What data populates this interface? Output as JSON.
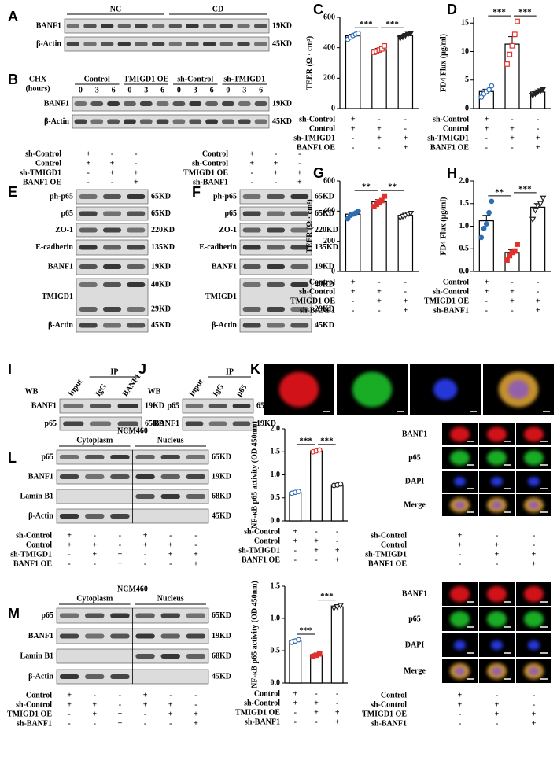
{
  "blots": [
    {
      "label": "A",
      "groups": [
        "NC",
        "CD"
      ],
      "rows": [
        {
          "name": "BANF1",
          "sizes": [
            "19KD"
          ]
        },
        {
          "name": "β-Actin",
          "sizes": [
            "45KD"
          ]
        }
      ]
    },
    {
      "label": "B",
      "axis_label": [
        "CHX",
        "(hours)"
      ],
      "groups": [
        "Control",
        "TMIGD1 OE",
        "sh-Control",
        "sh-TMIGD1"
      ],
      "times": [
        "0",
        "3",
        "6"
      ],
      "rows": [
        {
          "name": "BANF1",
          "sizes": [
            "19KD"
          ]
        },
        {
          "name": "β-Actin",
          "sizes": [
            "45KD"
          ]
        }
      ]
    },
    {
      "label": "E",
      "conditions": [
        {
          "name": "sh-Control",
          "signs": [
            "+",
            "-",
            "-"
          ]
        },
        {
          "name": "Control",
          "signs": [
            "+",
            "+",
            "-"
          ]
        },
        {
          "name": "sh-TMIGD1",
          "signs": [
            "-",
            "+",
            "+"
          ]
        },
        {
          "name": "BANF1 OE",
          "signs": [
            "-",
            "-",
            "+"
          ]
        }
      ],
      "rows": [
        {
          "name": "ph-p65",
          "sizes": [
            "65KD"
          ]
        },
        {
          "name": "p65",
          "sizes": [
            "65KD"
          ]
        },
        {
          "name": "ZO-1",
          "sizes": [
            "220KD"
          ]
        },
        {
          "name": "E-cadherin",
          "sizes": [
            "135KD"
          ]
        },
        {
          "name": "BANF1",
          "sizes": [
            "19KD"
          ]
        },
        {
          "name": "TMIGD1",
          "sizes": [
            "40KD",
            "29KD"
          ]
        },
        {
          "name": "β-Actin",
          "sizes": [
            "45KD"
          ]
        }
      ]
    },
    {
      "label": "F",
      "conditions": [
        {
          "name": "Control",
          "signs": [
            "+",
            "-",
            "-"
          ]
        },
        {
          "name": "sh-Control",
          "signs": [
            "+",
            "+",
            "-"
          ]
        },
        {
          "name": "TMIGD1 OE",
          "signs": [
            "-",
            "+",
            "+"
          ]
        },
        {
          "name": "sh-BANF1",
          "signs": [
            "-",
            "-",
            "+"
          ]
        }
      ],
      "rows": [
        {
          "name": "ph-p65",
          "sizes": [
            "65KD"
          ]
        },
        {
          "name": "p65",
          "sizes": [
            "65KD"
          ]
        },
        {
          "name": "ZO-1",
          "sizes": [
            "220KD"
          ]
        },
        {
          "name": "E-cadherin",
          "sizes": [
            "135KD"
          ]
        },
        {
          "name": "BANF1",
          "sizes": [
            "19KD"
          ]
        },
        {
          "name": "TMIGD1",
          "sizes": [
            "40KD",
            "29KD"
          ]
        },
        {
          "name": "β-Actin",
          "sizes": [
            "45KD"
          ]
        }
      ]
    },
    {
      "label": "I",
      "method": "WB",
      "ip": "IP",
      "lanes": [
        "Input",
        "IgG",
        "BANF1"
      ],
      "rows": [
        {
          "name": "BANF1",
          "sizes": [
            "19KD"
          ]
        },
        {
          "name": "p65",
          "sizes": [
            "65KD"
          ]
        }
      ]
    },
    {
      "label": "J",
      "method": "WB",
      "ip": "IP",
      "lanes": [
        "Input",
        "IgG",
        "p65"
      ],
      "rows": [
        {
          "name": "p65",
          "sizes": [
            "65KD"
          ]
        },
        {
          "name": "BANF1",
          "sizes": [
            "19KD"
          ]
        }
      ]
    },
    {
      "label": "L",
      "cell_line": "NCM460",
      "groups": [
        "Cytoplasm",
        "Nucleus"
      ],
      "rows": [
        {
          "name": "p65",
          "sizes": [
            "65KD"
          ]
        },
        {
          "name": "BANF1",
          "sizes": [
            "19KD"
          ]
        },
        {
          "name": "Lamin B1",
          "sizes": [
            "68KD"
          ]
        },
        {
          "name": "β-Actin",
          "sizes": [
            "45KD"
          ]
        }
      ],
      "conditions": [
        {
          "name": "sh-Control",
          "signs": [
            "+",
            "-",
            "-",
            "+",
            "-",
            "-"
          ]
        },
        {
          "name": "Control",
          "signs": [
            "+",
            "+",
            "-",
            "+",
            "+",
            "-"
          ]
        },
        {
          "name": "sh-TMIGD1",
          "signs": [
            "-",
            "+",
            "+",
            "-",
            "+",
            "+"
          ]
        },
        {
          "name": "BANF1 OE",
          "signs": [
            "-",
            "-",
            "+",
            "-",
            "-",
            "+"
          ]
        }
      ]
    },
    {
      "label": "M",
      "cell_line": "NCM460",
      "groups": [
        "Cytoplasm",
        "Nucleus"
      ],
      "rows": [
        {
          "name": "p65",
          "sizes": [
            "65KD"
          ]
        },
        {
          "name": "BANF1",
          "sizes": [
            "19KD"
          ]
        },
        {
          "name": "Lamin B1",
          "sizes": [
            "68KD"
          ]
        },
        {
          "name": "β-Actin",
          "sizes": [
            "45KD"
          ]
        }
      ],
      "conditions": [
        {
          "name": "Control",
          "signs": [
            "+",
            "-",
            "-",
            "+",
            "-",
            "-"
          ]
        },
        {
          "name": "sh-Control",
          "signs": [
            "+",
            "+",
            "-",
            "+",
            "+",
            "-"
          ]
        },
        {
          "name": "TMIGD1 OE",
          "signs": [
            "-",
            "+",
            "+",
            "-",
            "+",
            "+"
          ]
        },
        {
          "name": "sh-BANF1",
          "signs": [
            "-",
            "-",
            "+",
            "-",
            "-",
            "+"
          ]
        }
      ]
    }
  ],
  "chart_data": [
    {
      "type": "bar",
      "label": "C",
      "ylabel": "TEER (Ω · cm²)",
      "ylim": [
        0,
        600
      ],
      "yticks": [
        0,
        200,
        400,
        600
      ],
      "bar_color": "#ffffff",
      "values": [
        478,
        388,
        480
      ],
      "errors": [
        10,
        8,
        8
      ],
      "points": [
        [
          455,
          470,
          480,
          488,
          495
        ],
        [
          370,
          378,
          385,
          392,
          412
        ],
        [
          462,
          470,
          480,
          488,
          495
        ]
      ],
      "point_colors": [
        "#2e6db4",
        "#e0312f",
        "#222222"
      ],
      "markers": [
        "circle",
        "square",
        "triangle-down"
      ],
      "marker_fill": [
        false,
        false,
        true
      ],
      "comparisons": [
        {
          "groups": [
            0,
            1
          ],
          "label": "***"
        },
        {
          "groups": [
            1,
            2
          ],
          "label": "***"
        }
      ],
      "conditions": [
        {
          "name": "sh-Control",
          "signs": [
            "+",
            "-",
            "-"
          ]
        },
        {
          "name": "Control",
          "signs": [
            "+",
            "+",
            "-"
          ]
        },
        {
          "name": "sh-TMIGD1",
          "signs": [
            "-",
            "+",
            "+"
          ]
        },
        {
          "name": "BANF1 OE",
          "signs": [
            "-",
            "-",
            "+"
          ]
        }
      ]
    },
    {
      "type": "bar",
      "label": "D",
      "ylabel": "FD4 Flux (μg/ml)",
      "ylim": [
        0,
        16
      ],
      "yticks": [
        0,
        5,
        10,
        15
      ],
      "bar_color": "#ffffff",
      "values": [
        3.0,
        11.3,
        2.9
      ],
      "errors": [
        0.4,
        1.3,
        0.3
      ],
      "points": [
        [
          2.0,
          2.6,
          3.0,
          3.3,
          4.0
        ],
        [
          7.8,
          9.5,
          11.0,
          13.0,
          15.3
        ],
        [
          2.3,
          2.6,
          2.9,
          3.1,
          3.4
        ]
      ],
      "point_colors": [
        "#2e6db4",
        "#e0312f",
        "#222222"
      ],
      "markers": [
        "circle",
        "square",
        "triangle-down"
      ],
      "marker_fill": [
        false,
        false,
        true
      ],
      "comparisons": [
        {
          "groups": [
            0,
            1
          ],
          "label": "***"
        },
        {
          "groups": [
            1,
            2
          ],
          "label": "***"
        }
      ],
      "conditions": [
        {
          "name": "sh-Control",
          "signs": [
            "+",
            "-",
            "-"
          ]
        },
        {
          "name": "Control",
          "signs": [
            "+",
            "+",
            "-"
          ]
        },
        {
          "name": "sh-TMIGD1",
          "signs": [
            "-",
            "+",
            "+"
          ]
        },
        {
          "name": "BANF1 OE",
          "signs": [
            "-",
            "-",
            "+"
          ]
        }
      ]
    },
    {
      "type": "bar",
      "label": "G",
      "ylabel": "TEER (Ω · cm²)",
      "ylim": [
        0,
        600
      ],
      "yticks": [
        0,
        200,
        400,
        600
      ],
      "bar_color": "#ffffff",
      "values": [
        380,
        462,
        372
      ],
      "errors": [
        12,
        14,
        8
      ],
      "points": [
        [
          350,
          372,
          380,
          388,
          400
        ],
        [
          430,
          445,
          460,
          470,
          500
        ],
        [
          355,
          365,
          372,
          378,
          385
        ]
      ],
      "point_colors": [
        "#2e6db4",
        "#e0312f",
        "#222222"
      ],
      "markers": [
        "circle",
        "square",
        "triangle-down"
      ],
      "marker_fill": [
        true,
        true,
        false
      ],
      "comparisons": [
        {
          "groups": [
            0,
            1
          ],
          "label": "**"
        },
        {
          "groups": [
            1,
            2
          ],
          "label": "**"
        }
      ],
      "conditions": [
        {
          "name": "Control",
          "signs": [
            "+",
            "-",
            "-"
          ]
        },
        {
          "name": "sh-Control",
          "signs": [
            "+",
            "+",
            "-"
          ]
        },
        {
          "name": "TMIGD1 OE",
          "signs": [
            "-",
            "+",
            "+"
          ]
        },
        {
          "name": "sh-BANF1",
          "signs": [
            "-",
            "-",
            "+"
          ]
        }
      ]
    },
    {
      "type": "bar",
      "label": "H",
      "ylabel": "FD4 Flux (μg/ml)",
      "ylim": [
        0,
        2
      ],
      "yticks": [
        {
          "value": 0,
          "label": "0.0"
        },
        {
          "value": 0.5,
          "label": "0.5"
        },
        {
          "value": 1,
          "label": "1.0"
        },
        {
          "value": 1.5,
          "label": "1.5"
        },
        {
          "value": 2,
          "label": "2.0"
        }
      ],
      "bar_color": "#ffffff",
      "values": [
        1.12,
        0.42,
        1.42
      ],
      "errors": [
        0.12,
        0.06,
        0.08
      ],
      "points": [
        [
          0.75,
          0.95,
          1.05,
          1.3,
          1.55
        ],
        [
          0.25,
          0.35,
          0.42,
          0.45,
          0.6
        ],
        [
          1.15,
          1.35,
          1.45,
          1.5,
          1.62
        ]
      ],
      "point_colors": [
        "#2e6db4",
        "#e0312f",
        "#222222"
      ],
      "markers": [
        "circle",
        "square",
        "triangle-down"
      ],
      "marker_fill": [
        true,
        true,
        false
      ],
      "comparisons": [
        {
          "groups": [
            0,
            1
          ],
          "label": "**"
        },
        {
          "groups": [
            1,
            2
          ],
          "label": "***"
        }
      ],
      "conditions": [
        {
          "name": "Control",
          "signs": [
            "+",
            "-",
            "-"
          ]
        },
        {
          "name": "sh-Control",
          "signs": [
            "+",
            "+",
            "-"
          ]
        },
        {
          "name": "TMIGD1 OE",
          "signs": [
            "-",
            "+",
            "+"
          ]
        },
        {
          "name": "sh-BANF1",
          "signs": [
            "-",
            "-",
            "+"
          ]
        }
      ]
    },
    {
      "type": "bar",
      "ylabel": "NF-κB p65 activity (OD 450nm)",
      "ylim": [
        0,
        2
      ],
      "yticks": [
        {
          "value": 0,
          "label": "0.0"
        },
        {
          "value": 0.5,
          "label": "0.5"
        },
        {
          "value": 1,
          "label": "1.0"
        },
        {
          "value": 1.5,
          "label": "1.5"
        },
        {
          "value": 2,
          "label": "2.0"
        }
      ],
      "bar_color": "#ffffff",
      "values": [
        0.62,
        1.52,
        0.78
      ],
      "errors": [
        0.02,
        0.02,
        0.02
      ],
      "points": [
        [
          0.6,
          0.62,
          0.64
        ],
        [
          1.5,
          1.52,
          1.54
        ],
        [
          0.77,
          0.78,
          0.8
        ]
      ],
      "point_colors": [
        "#2e6db4",
        "#e0312f",
        "#222222"
      ],
      "markers": [
        "circle",
        "circle",
        "circle"
      ],
      "marker_fill": [
        false,
        false,
        false
      ],
      "comparisons": [
        {
          "groups": [
            0,
            1
          ],
          "label": "***"
        },
        {
          "groups": [
            1,
            2
          ],
          "label": "***"
        }
      ],
      "conditions": [
        {
          "name": "sh-Control",
          "signs": [
            "+",
            "-",
            "-"
          ]
        },
        {
          "name": "Control",
          "signs": [
            "+",
            "+",
            "-"
          ]
        },
        {
          "name": "sh-TMIGD1",
          "signs": [
            "-",
            "+",
            "+"
          ]
        },
        {
          "name": "BANF1 OE",
          "signs": [
            "-",
            "-",
            "+"
          ]
        }
      ]
    },
    {
      "type": "bar",
      "ylabel": "NF-κB p65 activity (OD 450nm)",
      "ylim": [
        0,
        1.5
      ],
      "yticks": [
        {
          "value": 0,
          "label": "0.0"
        },
        {
          "value": 0.5,
          "label": "0.5"
        },
        {
          "value": 1,
          "label": "1.0"
        },
        {
          "value": 1.5,
          "label": "1.5"
        }
      ],
      "bar_color": "#ffffff",
      "values": [
        0.65,
        0.43,
        1.18
      ],
      "errors": [
        0.02,
        0.02,
        0.02
      ],
      "points": [
        [
          0.63,
          0.65,
          0.67
        ],
        [
          0.41,
          0.43,
          0.45
        ],
        [
          1.16,
          1.18,
          1.2
        ]
      ],
      "point_colors": [
        "#2e6db4",
        "#e0312f",
        "#222222"
      ],
      "markers": [
        "circle",
        "square",
        "triangle-down"
      ],
      "marker_fill": [
        false,
        true,
        false
      ],
      "comparisons": [
        {
          "groups": [
            0,
            1
          ],
          "label": "***"
        },
        {
          "groups": [
            1,
            2
          ],
          "label": "***"
        }
      ],
      "conditions": [
        {
          "name": "Control",
          "signs": [
            "+",
            "-",
            "-"
          ]
        },
        {
          "name": "sh-Control",
          "signs": [
            "+",
            "+",
            "-"
          ]
        },
        {
          "name": "TMIGD1 OE",
          "signs": [
            "-",
            "+",
            "+"
          ]
        },
        {
          "name": "sh-BANF1",
          "signs": [
            "-",
            "-",
            "+"
          ]
        }
      ]
    }
  ],
  "images": [
    {
      "label": "K",
      "channels": [
        "BANF1",
        "p65",
        "DAPI",
        "Merge"
      ],
      "colors": [
        "#ff2020",
        "#22cc22",
        "#3355ff",
        "#ffffff"
      ]
    },
    {
      "channels": [
        "BANF1",
        "p65",
        "DAPI",
        "Merge"
      ],
      "colors": [
        "#ff1a1a",
        "#1aa81a",
        "#2233dd",
        "#000000"
      ],
      "conditions": [
        {
          "name": "sh-Control",
          "signs": [
            "+",
            "-",
            "-"
          ]
        },
        {
          "name": "Control",
          "signs": [
            "+",
            "+",
            "-"
          ]
        },
        {
          "name": "sh-TMIGD1",
          "signs": [
            "-",
            "+",
            "+"
          ]
        },
        {
          "name": "BANF1 OE",
          "signs": [
            "-",
            "-",
            "+"
          ]
        }
      ]
    },
    {
      "channels": [
        "BANF1",
        "p65",
        "DAPI",
        "Merge"
      ],
      "colors": [
        "#ff1a1a",
        "#1aa81a",
        "#2233dd",
        "#000000"
      ],
      "conditions": [
        {
          "name": "Control",
          "signs": [
            "+",
            "-",
            "-"
          ]
        },
        {
          "name": "sh-Control",
          "signs": [
            "+",
            "+",
            "-"
          ]
        },
        {
          "name": "TMIGD1 OE",
          "signs": [
            "-",
            "+",
            "+"
          ]
        },
        {
          "name": "sh-BANF1",
          "signs": [
            "-",
            "-",
            "+"
          ]
        }
      ]
    }
  ]
}
